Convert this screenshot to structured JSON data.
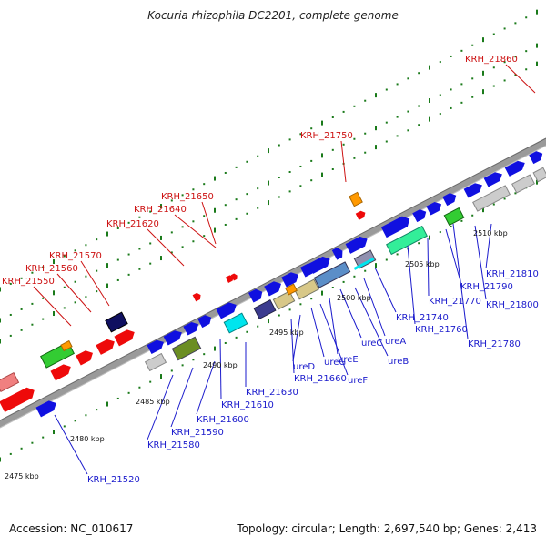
{
  "title": "Kocuria rhizophila DC2201, complete genome",
  "footer": {
    "accession": "Accession: NC_010617",
    "summary": "Topology: circular; Length: 2,697,540 bp; Genes: 2,413"
  },
  "colors": {
    "forward": "#1010e0",
    "red": "#ee0a0a",
    "label_top": "#cc1111",
    "label_bottom": "#1a1acc",
    "track": "#8a8a8a",
    "tick": "#1a7a1a"
  },
  "kbp_marks": [
    {
      "text": "2475 kbp"
    },
    {
      "text": "2480 kbp"
    },
    {
      "text": "2485 kbp"
    },
    {
      "text": "2490 kbp"
    },
    {
      "text": "2495 kbp"
    },
    {
      "text": "2500 kbp"
    },
    {
      "text": "2505 kbp"
    },
    {
      "text": "2510 kbp"
    }
  ],
  "labels_top": [
    {
      "text": "KRH_21550"
    },
    {
      "text": "KRH_21560"
    },
    {
      "text": "KRH_21570"
    },
    {
      "text": "KRH_21620"
    },
    {
      "text": "KRH_21640"
    },
    {
      "text": "KRH_21650"
    },
    {
      "text": "KRH_21750"
    },
    {
      "text": "KRH_21860"
    }
  ],
  "labels_bottom": [
    {
      "text": "KRH_21520"
    },
    {
      "text": "KRH_21580"
    },
    {
      "text": "KRH_21590"
    },
    {
      "text": "KRH_21600"
    },
    {
      "text": "KRH_21610"
    },
    {
      "text": "KRH_21630"
    },
    {
      "text": "ureD"
    },
    {
      "text": "KRH_21660"
    },
    {
      "text": "ureG"
    },
    {
      "text": "ureF"
    },
    {
      "text": "ureE"
    },
    {
      "text": "ureC"
    },
    {
      "text": "ureB"
    },
    {
      "text": "ureA"
    },
    {
      "text": "KRH_21740"
    },
    {
      "text": "KRH_21760"
    },
    {
      "text": "KRH_21770"
    },
    {
      "text": "KRH_21780"
    },
    {
      "text": "KRH_21790"
    },
    {
      "text": "KRH_21800"
    },
    {
      "text": "KRH_21810"
    }
  ]
}
